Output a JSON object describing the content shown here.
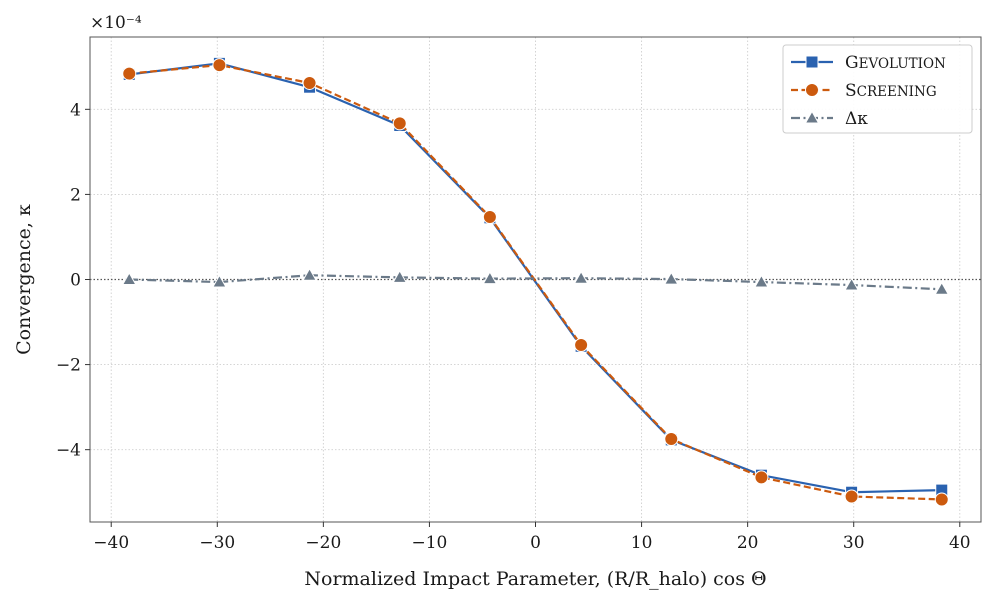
{
  "chart_data": {
    "type": "line",
    "title": "",
    "xlabel": "Normalized Impact Parameter, (R/R_halo) cos Θ",
    "ylabel": "Convergence, κ",
    "y_scale_label": "×10⁻⁴",
    "xlim": [
      -42,
      42
    ],
    "ylim": [
      -5.7,
      5.7
    ],
    "x_ticks": [
      -40,
      -30,
      -20,
      -10,
      0,
      10,
      20,
      30,
      40
    ],
    "y_ticks": [
      -4,
      -2,
      0,
      2,
      4
    ],
    "x_tick_labels": [
      "−40",
      "−30",
      "−20",
      "−10",
      "0",
      "10",
      "20",
      "30",
      "40"
    ],
    "y_tick_labels": [
      "−4",
      "−2",
      "0",
      "2",
      "4"
    ],
    "grid": true,
    "legend_position": "top-right",
    "x": [
      -38.3,
      -29.8,
      -21.3,
      -12.8,
      -4.3,
      4.3,
      12.8,
      21.3,
      29.8,
      38.3
    ],
    "series": [
      {
        "name": "Gevolution",
        "legend_first": "G",
        "legend_rest": "EVOLUTION",
        "color": "#2a62b0",
        "marker": "square",
        "dash": "solid",
        "values": [
          4.82,
          5.08,
          4.52,
          3.62,
          1.45,
          -1.57,
          -3.77,
          -4.6,
          -5.0,
          -4.95
        ]
      },
      {
        "name": "Screening",
        "legend_first": "S",
        "legend_rest": "CREENING",
        "color": "#cc5a0e",
        "marker": "circle",
        "dash": "dashed",
        "values": [
          4.84,
          5.04,
          4.62,
          3.67,
          1.47,
          -1.54,
          -3.75,
          -4.65,
          -5.1,
          -5.17
        ]
      },
      {
        "name": "Δκ",
        "legend_first": "Δκ",
        "legend_rest": "",
        "color": "#6b7a89",
        "marker": "triangle",
        "dash": "dashdot",
        "values": [
          0.0,
          -0.06,
          0.1,
          0.05,
          0.02,
          0.03,
          0.01,
          -0.06,
          -0.13,
          -0.23
        ]
      }
    ],
    "zero_line": true
  }
}
